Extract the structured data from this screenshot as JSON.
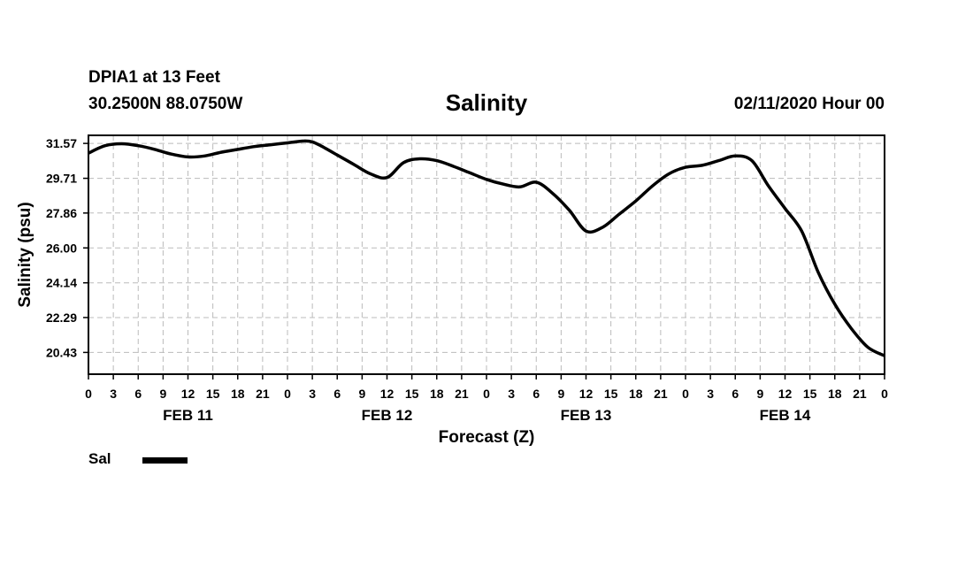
{
  "header": {
    "station": "DPIA1 at 13 Feet",
    "coords": "30.2500N 88.0750W",
    "title": "Salinity",
    "stamp": "02/11/2020 Hour 00"
  },
  "legend": {
    "label": "Sal"
  },
  "chart_data": {
    "type": "line",
    "title": "Salinity",
    "xlabel": "Forecast (Z)",
    "ylabel": "Salinity (psu)",
    "x_unit": "hours from 02/11/2020 00Z",
    "xlim": [
      0,
      96
    ],
    "ylim": [
      19.27,
      32.0
    ],
    "y_ticks": [
      20.43,
      22.29,
      24.14,
      26.0,
      27.86,
      29.71,
      31.57
    ],
    "y_tick_labels": [
      "20.43",
      "22.29",
      "24.14",
      "26.00",
      "27.86",
      "29.71",
      "31.57"
    ],
    "x_tick_labels": [
      "0",
      "3",
      "6",
      "9",
      "12",
      "15",
      "18",
      "21",
      "0",
      "3",
      "6",
      "9",
      "12",
      "15",
      "18",
      "21",
      "0",
      "3",
      "6",
      "9",
      "12",
      "15",
      "18",
      "21",
      "0",
      "3",
      "6",
      "9",
      "12",
      "15",
      "18",
      "21",
      "0"
    ],
    "day_labels": [
      "FEB 11",
      "FEB 12",
      "FEB 13",
      "FEB 14"
    ],
    "grid": true,
    "legend_position": "bottom-left",
    "series": [
      {
        "name": "Sal",
        "color": "#000000",
        "x": [
          0,
          2,
          4,
          6,
          8,
          10,
          12,
          14,
          16,
          18,
          20,
          22,
          24,
          26,
          27,
          28,
          30,
          32,
          34,
          36,
          38,
          40,
          42,
          44,
          46,
          48,
          50,
          52,
          54,
          56,
          58,
          60,
          62,
          64,
          66,
          68,
          70,
          72,
          74,
          76,
          78,
          80,
          82,
          84,
          86,
          88,
          90,
          92,
          94,
          96
        ],
        "y": [
          31.05,
          31.45,
          31.55,
          31.45,
          31.25,
          31.0,
          30.85,
          30.9,
          31.1,
          31.25,
          31.4,
          31.5,
          31.6,
          31.7,
          31.65,
          31.45,
          30.95,
          30.45,
          29.95,
          29.75,
          30.55,
          30.75,
          30.65,
          30.35,
          30.0,
          29.65,
          29.4,
          29.25,
          29.5,
          28.9,
          28.0,
          26.9,
          27.1,
          27.8,
          28.5,
          29.3,
          29.95,
          30.3,
          30.4,
          30.65,
          30.9,
          30.65,
          29.3,
          28.1,
          26.9,
          24.7,
          23.0,
          21.7,
          20.7,
          20.25
        ]
      }
    ]
  }
}
